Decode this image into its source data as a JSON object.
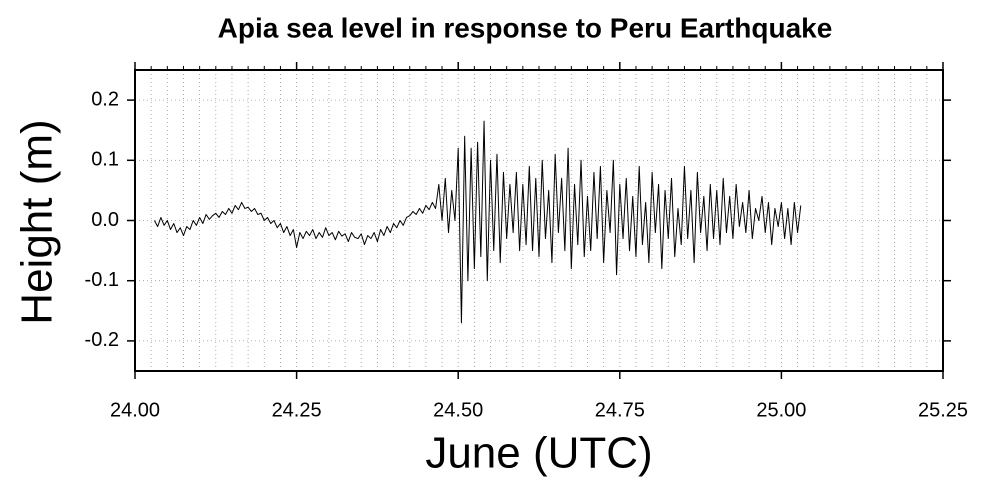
{
  "chart_data": {
    "type": "line",
    "title": "Apia sea level in response to Peru Earthquake",
    "xlabel": "June (UTC)",
    "ylabel": "Height (m)",
    "xlim": [
      24.0,
      25.25
    ],
    "ylim": [
      -0.25,
      0.25
    ],
    "xticks": [
      {
        "value": 24.0,
        "label": "24.00"
      },
      {
        "value": 24.25,
        "label": "24.25"
      },
      {
        "value": 24.5,
        "label": "24.50"
      },
      {
        "value": 24.75,
        "label": "24.75"
      },
      {
        "value": 25.0,
        "label": "25.00"
      },
      {
        "value": 25.25,
        "label": "25.25"
      }
    ],
    "yticks": [
      -0.2,
      -0.1,
      {
        "value": 0,
        "label": "0.0"
      },
      0.1,
      0.2
    ],
    "xminorticks": [
      24.025,
      24.05,
      24.075,
      24.1,
      24.125,
      24.15,
      24.175,
      24.2,
      24.225,
      24.275,
      24.3,
      24.325,
      24.35,
      24.375,
      24.4,
      24.425,
      24.45,
      24.475,
      24.525,
      24.55,
      24.575,
      24.6,
      24.625,
      24.65,
      24.675,
      24.7,
      24.725,
      24.775,
      24.8,
      24.825,
      24.85,
      24.875,
      24.9,
      24.925,
      24.95,
      24.975,
      25.025,
      25.05,
      25.075,
      25.1,
      25.125,
      25.15,
      25.175,
      25.2,
      25.225
    ],
    "grid": true,
    "x": [
      24.03,
      24.035,
      24.04,
      24.045,
      24.05,
      24.055,
      24.06,
      24.065,
      24.07,
      24.075,
      24.08,
      24.085,
      24.09,
      24.095,
      24.1,
      24.105,
      24.11,
      24.115,
      24.12,
      24.125,
      24.13,
      24.135,
      24.14,
      24.145,
      24.15,
      24.155,
      24.16,
      24.165,
      24.17,
      24.175,
      24.18,
      24.185,
      24.19,
      24.195,
      24.2,
      24.205,
      24.21,
      24.215,
      24.22,
      24.225,
      24.23,
      24.235,
      24.24,
      24.245,
      24.25,
      24.255,
      24.26,
      24.265,
      24.27,
      24.275,
      24.28,
      24.285,
      24.29,
      24.295,
      24.3,
      24.305,
      24.31,
      24.315,
      24.32,
      24.325,
      24.33,
      24.335,
      24.34,
      24.345,
      24.35,
      24.355,
      24.36,
      24.365,
      24.37,
      24.375,
      24.38,
      24.385,
      24.39,
      24.395,
      24.4,
      24.405,
      24.41,
      24.415,
      24.42,
      24.425,
      24.43,
      24.435,
      24.44,
      24.445,
      24.45,
      24.455,
      24.46,
      24.465,
      24.47,
      24.475,
      24.48,
      24.485,
      24.49,
      24.495,
      24.5,
      24.505,
      24.51,
      24.515,
      24.52,
      24.525,
      24.53,
      24.535,
      24.54,
      24.545,
      24.55,
      24.555,
      24.56,
      24.565,
      24.57,
      24.575,
      24.58,
      24.585,
      24.59,
      24.595,
      24.6,
      24.605,
      24.61,
      24.615,
      24.62,
      24.625,
      24.63,
      24.635,
      24.64,
      24.645,
      24.65,
      24.655,
      24.66,
      24.665,
      24.67,
      24.675,
      24.68,
      24.685,
      24.69,
      24.695,
      24.7,
      24.705,
      24.71,
      24.715,
      24.72,
      24.725,
      24.73,
      24.735,
      24.74,
      24.745,
      24.75,
      24.755,
      24.76,
      24.765,
      24.77,
      24.775,
      24.78,
      24.785,
      24.79,
      24.795,
      24.8,
      24.805,
      24.81,
      24.815,
      24.82,
      24.825,
      24.83,
      24.835,
      24.84,
      24.845,
      24.85,
      24.855,
      24.86,
      24.865,
      24.87,
      24.875,
      24.88,
      24.885,
      24.89,
      24.895,
      24.9,
      24.905,
      24.91,
      24.915,
      24.92,
      24.925,
      24.93,
      24.935,
      24.94,
      24.945,
      24.95,
      24.955,
      24.96,
      24.965,
      24.97,
      24.975,
      24.98,
      24.985,
      24.99,
      24.995,
      25.0,
      25.005,
      25.01,
      25.015,
      25.02,
      25.025,
      25.03
    ],
    "series": [
      {
        "color": "#000000",
        "values": [
          0.0,
          -0.01,
          0.005,
          -0.008,
          0.0,
          -0.015,
          -0.005,
          -0.02,
          -0.012,
          -0.025,
          -0.01,
          -0.015,
          0.0,
          -0.008,
          0.005,
          -0.005,
          0.01,
          0.002,
          0.008,
          0.012,
          0.005,
          0.015,
          0.01,
          0.02,
          0.012,
          0.025,
          0.018,
          0.03,
          0.02,
          0.022,
          0.015,
          0.02,
          0.01,
          0.012,
          0.0,
          0.005,
          -0.005,
          0.0,
          -0.012,
          -0.005,
          -0.02,
          -0.01,
          -0.025,
          -0.015,
          -0.045,
          -0.02,
          -0.03,
          -0.018,
          -0.025,
          -0.015,
          -0.03,
          -0.02,
          -0.028,
          -0.012,
          -0.025,
          -0.02,
          -0.032,
          -0.018,
          -0.026,
          -0.022,
          -0.035,
          -0.02,
          -0.028,
          -0.03,
          -0.022,
          -0.04,
          -0.025,
          -0.03,
          -0.02,
          -0.035,
          -0.015,
          -0.025,
          -0.01,
          -0.02,
          -0.005,
          -0.012,
          0.0,
          -0.008,
          0.005,
          0.008,
          0.015,
          0.01,
          0.02,
          0.012,
          0.025,
          0.018,
          0.03,
          0.02,
          0.06,
          0.0,
          0.07,
          -0.02,
          0.05,
          0.0,
          0.12,
          -0.17,
          0.14,
          -0.1,
          0.12,
          -0.08,
          0.13,
          -0.06,
          0.165,
          -0.1,
          0.1,
          -0.05,
          0.11,
          -0.07,
          0.08,
          -0.03,
          0.06,
          -0.02,
          0.08,
          -0.05,
          0.06,
          -0.04,
          0.09,
          -0.05,
          0.07,
          -0.06,
          0.1,
          -0.03,
          0.05,
          -0.07,
          0.11,
          -0.02,
          0.07,
          -0.05,
          0.12,
          -0.08,
          0.06,
          -0.04,
          0.1,
          -0.06,
          0.04,
          -0.05,
          0.08,
          -0.03,
          0.09,
          -0.07,
          0.05,
          -0.02,
          0.1,
          -0.09,
          0.06,
          -0.03,
          0.07,
          -0.05,
          0.04,
          -0.06,
          0.09,
          -0.04,
          0.03,
          -0.07,
          0.08,
          -0.02,
          0.06,
          -0.08,
          0.05,
          -0.03,
          0.07,
          -0.06,
          0.02,
          -0.04,
          0.09,
          -0.03,
          0.05,
          -0.07,
          0.08,
          -0.02,
          0.04,
          -0.05,
          0.06,
          -0.03,
          0.05,
          -0.04,
          0.07,
          -0.02,
          0.04,
          -0.03,
          0.06,
          -0.01,
          0.03,
          -0.02,
          0.05,
          -0.03,
          0.02,
          0.0,
          0.04,
          -0.02,
          0.03,
          -0.04,
          0.02,
          -0.01,
          0.03,
          -0.03,
          0.02,
          -0.04,
          0.03,
          -0.02,
          0.025
        ]
      }
    ]
  }
}
